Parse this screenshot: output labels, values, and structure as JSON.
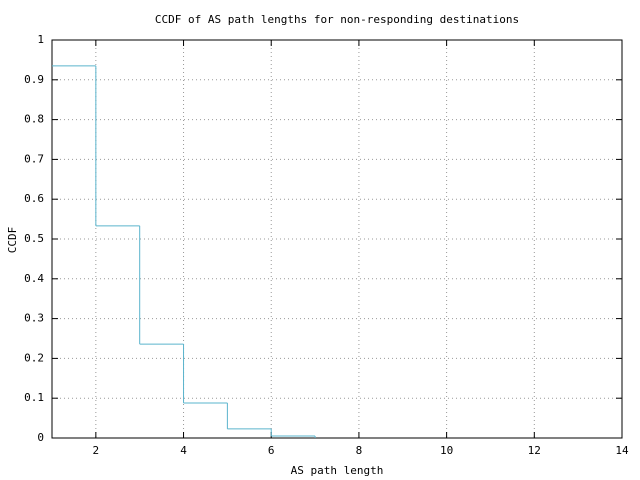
{
  "chart_data": {
    "type": "step",
    "title": "CCDF of AS path lengths for non-responding destinations",
    "x_label": "AS path length",
    "y_label": "CCDF",
    "x": [
      1,
      2,
      3,
      4,
      5,
      6,
      7
    ],
    "series": [
      {
        "name": "CCDF",
        "color": "#5ab4cc",
        "values": [
          0.935,
          0.533,
          0.236,
          0.088,
          0.023,
          0.005,
          0
        ]
      }
    ],
    "xlim": [
      1,
      14
    ],
    "xticks": [
      2,
      4,
      6,
      8,
      10,
      12,
      14
    ],
    "ylim": [
      0,
      1
    ],
    "yticks": [
      0,
      0.1,
      0.2,
      0.3,
      0.4,
      0.5,
      0.6,
      0.7,
      0.8,
      0.9,
      1
    ],
    "grid": true
  }
}
